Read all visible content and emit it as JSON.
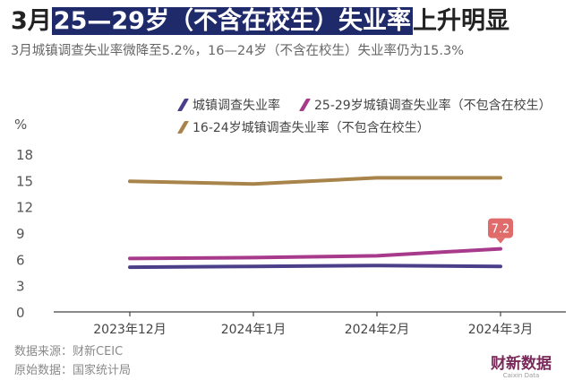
{
  "header": {
    "title_pre": "3月",
    "title_highlight": "25—29岁（不含在校生）失业率",
    "title_post": "上升明显",
    "subtitle": "3月城镇调查失业率微降至5.2%，16—24岁（不含在校生）失业率仍为15.3%"
  },
  "chart_data": {
    "type": "line",
    "categories": [
      "2023年12月",
      "2024年1月",
      "2024年2月",
      "2024年3月"
    ],
    "series": [
      {
        "name": "城镇调查失业率",
        "values": [
          5.1,
          5.2,
          5.3,
          5.2
        ],
        "color": "#4b3f8a"
      },
      {
        "name": "25-29岁城镇调查失业率（不包含在校生）",
        "values": [
          6.1,
          6.2,
          6.4,
          7.2
        ],
        "color": "#a83a8c"
      },
      {
        "name": "16-24岁城镇调查失业率（不包含在校生）",
        "values": [
          14.9,
          14.6,
          15.3,
          15.3
        ],
        "color": "#a8844a"
      }
    ],
    "y_unit": "%",
    "yticks": [
      0,
      3,
      6,
      9,
      12,
      15,
      18
    ],
    "ylim": [
      0,
      20
    ],
    "annotation": {
      "series": 1,
      "index": 3,
      "label": "7.2",
      "color": "#e06b6b"
    },
    "grid": false,
    "legend": "top"
  },
  "footer": {
    "source": "数据来源：财新CEIC",
    "original": "原始数据：国家统计局",
    "brand": "财新数据",
    "brand_en": "Caixin Data"
  }
}
